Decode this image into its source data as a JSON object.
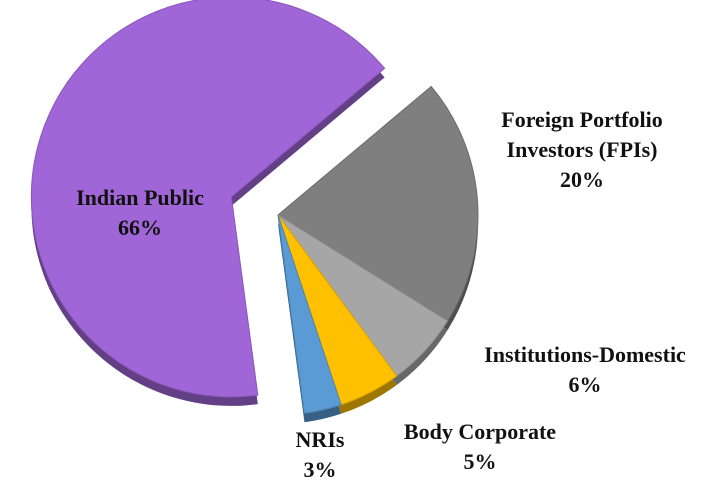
{
  "chart_data": {
    "type": "pie",
    "categories": [
      "Foreign Portfolio Investors (FPIs)",
      "Institutions-Domestic",
      "Body Corporate",
      "NRIs",
      "Indian Public"
    ],
    "values": [
      20,
      6,
      5,
      3,
      66
    ],
    "value_labels": [
      "20%",
      "6%",
      "5%",
      "3%",
      "66%"
    ],
    "colors": [
      "#7f7f7f",
      "#a6a6a6",
      "#ffc000",
      "#5b9bd5",
      "#a066d8"
    ]
  }
}
